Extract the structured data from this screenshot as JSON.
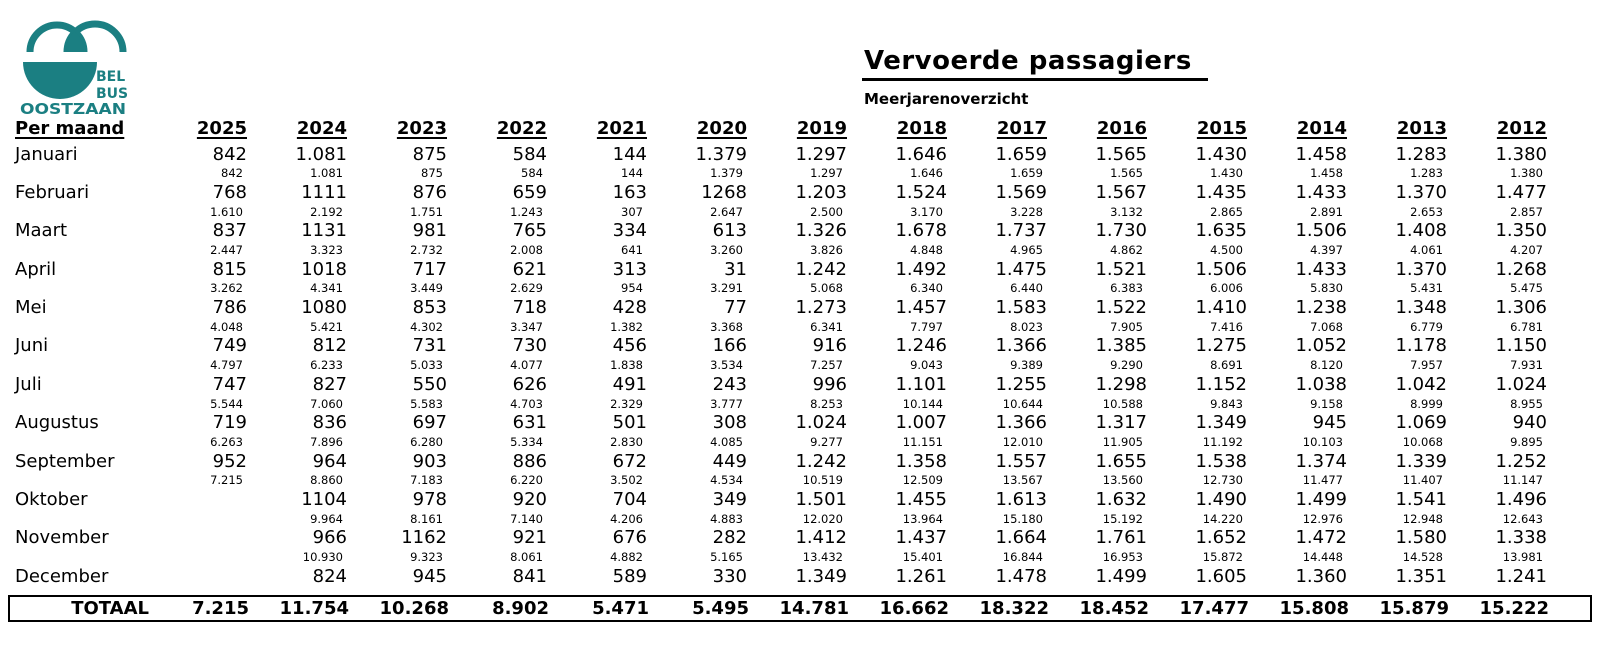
{
  "logo": {
    "line1": "BEL",
    "line2": "BUS",
    "line3": "OOSTZAAN",
    "color": "#1b7f82"
  },
  "header": {
    "title": "Vervoerde passagiers",
    "subtitle": "Meerjarenoverzicht"
  },
  "table": {
    "row_header": "Per maand",
    "years": [
      "2025",
      "2024",
      "2023",
      "2022",
      "2021",
      "2020",
      "2019",
      "2018",
      "2017",
      "2016",
      "2015",
      "2014",
      "2013",
      "2012"
    ],
    "months": [
      {
        "label": "Januari",
        "values": [
          "842",
          "1.081",
          "875",
          "584",
          "144",
          "1.379",
          "1.297",
          "1.646",
          "1.659",
          "1.565",
          "1.430",
          "1.458",
          "1.283",
          "1.380"
        ],
        "cumulative": [
          "842",
          "1.081",
          "875",
          "584",
          "144",
          "1.379",
          "1.297",
          "1.646",
          "1.659",
          "1.565",
          "1.430",
          "1.458",
          "1.283",
          "1.380"
        ]
      },
      {
        "label": "Februari",
        "values": [
          "768",
          "1111",
          "876",
          "659",
          "163",
          "1268",
          "1.203",
          "1.524",
          "1.569",
          "1.567",
          "1.435",
          "1.433",
          "1.370",
          "1.477"
        ],
        "cumulative": [
          "1.610",
          "2.192",
          "1.751",
          "1.243",
          "307",
          "2.647",
          "2.500",
          "3.170",
          "3.228",
          "3.132",
          "2.865",
          "2.891",
          "2.653",
          "2.857"
        ]
      },
      {
        "label": "Maart",
        "values": [
          "837",
          "1131",
          "981",
          "765",
          "334",
          "613",
          "1.326",
          "1.678",
          "1.737",
          "1.730",
          "1.635",
          "1.506",
          "1.408",
          "1.350"
        ],
        "cumulative": [
          "2.447",
          "3.323",
          "2.732",
          "2.008",
          "641",
          "3.260",
          "3.826",
          "4.848",
          "4.965",
          "4.862",
          "4.500",
          "4.397",
          "4.061",
          "4.207"
        ]
      },
      {
        "label": "April",
        "values": [
          "815",
          "1018",
          "717",
          "621",
          "313",
          "31",
          "1.242",
          "1.492",
          "1.475",
          "1.521",
          "1.506",
          "1.433",
          "1.370",
          "1.268"
        ],
        "cumulative": [
          "3.262",
          "4.341",
          "3.449",
          "2.629",
          "954",
          "3.291",
          "5.068",
          "6.340",
          "6.440",
          "6.383",
          "6.006",
          "5.830",
          "5.431",
          "5.475"
        ]
      },
      {
        "label": "Mei",
        "values": [
          "786",
          "1080",
          "853",
          "718",
          "428",
          "77",
          "1.273",
          "1.457",
          "1.583",
          "1.522",
          "1.410",
          "1.238",
          "1.348",
          "1.306"
        ],
        "cumulative": [
          "4.048",
          "5.421",
          "4.302",
          "3.347",
          "1.382",
          "3.368",
          "6.341",
          "7.797",
          "8.023",
          "7.905",
          "7.416",
          "7.068",
          "6.779",
          "6.781"
        ]
      },
      {
        "label": "Juni",
        "values": [
          "749",
          "812",
          "731",
          "730",
          "456",
          "166",
          "916",
          "1.246",
          "1.366",
          "1.385",
          "1.275",
          "1.052",
          "1.178",
          "1.150"
        ],
        "cumulative": [
          "4.797",
          "6.233",
          "5.033",
          "4.077",
          "1.838",
          "3.534",
          "7.257",
          "9.043",
          "9.389",
          "9.290",
          "8.691",
          "8.120",
          "7.957",
          "7.931"
        ]
      },
      {
        "label": "Juli",
        "values": [
          "747",
          "827",
          "550",
          "626",
          "491",
          "243",
          "996",
          "1.101",
          "1.255",
          "1.298",
          "1.152",
          "1.038",
          "1.042",
          "1.024"
        ],
        "cumulative": [
          "5.544",
          "7.060",
          "5.583",
          "4.703",
          "2.329",
          "3.777",
          "8.253",
          "10.144",
          "10.644",
          "10.588",
          "9.843",
          "9.158",
          "8.999",
          "8.955"
        ]
      },
      {
        "label": "Augustus",
        "values": [
          "719",
          "836",
          "697",
          "631",
          "501",
          "308",
          "1.024",
          "1.007",
          "1.366",
          "1.317",
          "1.349",
          "945",
          "1.069",
          "940"
        ],
        "cumulative": [
          "6.263",
          "7.896",
          "6.280",
          "5.334",
          "2.830",
          "4.085",
          "9.277",
          "11.151",
          "12.010",
          "11.905",
          "11.192",
          "10.103",
          "10.068",
          "9.895"
        ]
      },
      {
        "label": "September",
        "values": [
          "952",
          "964",
          "903",
          "886",
          "672",
          "449",
          "1.242",
          "1.358",
          "1.557",
          "1.655",
          "1.538",
          "1.374",
          "1.339",
          "1.252"
        ],
        "cumulative": [
          "7.215",
          "8.860",
          "7.183",
          "6.220",
          "3.502",
          "4.534",
          "10.519",
          "12.509",
          "13.567",
          "13.560",
          "12.730",
          "11.477",
          "11.407",
          "11.147"
        ]
      },
      {
        "label": "Oktober",
        "values": [
          "",
          "1104",
          "978",
          "920",
          "704",
          "349",
          "1.501",
          "1.455",
          "1.613",
          "1.632",
          "1.490",
          "1.499",
          "1.541",
          "1.496"
        ],
        "cumulative": [
          "",
          "9.964",
          "8.161",
          "7.140",
          "4.206",
          "4.883",
          "12.020",
          "13.964",
          "15.180",
          "15.192",
          "14.220",
          "12.976",
          "12.948",
          "12.643"
        ]
      },
      {
        "label": "November",
        "values": [
          "",
          "966",
          "1162",
          "921",
          "676",
          "282",
          "1.412",
          "1.437",
          "1.664",
          "1.761",
          "1.652",
          "1.472",
          "1.580",
          "1.338"
        ],
        "cumulative": [
          "",
          "10.930",
          "9.323",
          "8.061",
          "4.882",
          "5.165",
          "13.432",
          "15.401",
          "16.844",
          "16.953",
          "15.872",
          "14.448",
          "14.528",
          "13.981"
        ]
      },
      {
        "label": "December",
        "values": [
          "",
          "824",
          "945",
          "841",
          "589",
          "330",
          "1.349",
          "1.261",
          "1.478",
          "1.499",
          "1.605",
          "1.360",
          "1.351",
          "1.241"
        ]
      }
    ],
    "total": {
      "label": "TOTAAL",
      "values": [
        "7.215",
        "11.754",
        "10.268",
        "8.902",
        "5.471",
        "5.495",
        "14.781",
        "16.662",
        "18.322",
        "18.452",
        "17.477",
        "15.808",
        "15.879",
        "15.222"
      ]
    }
  }
}
